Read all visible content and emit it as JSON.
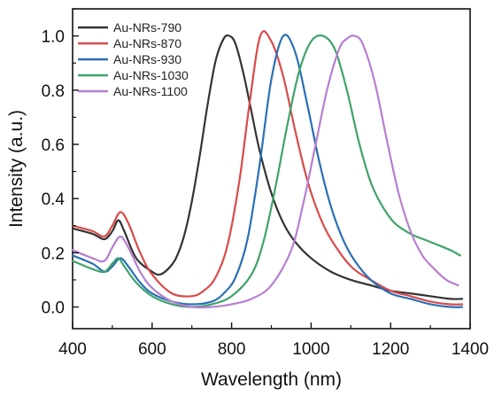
{
  "chart_data": {
    "type": "line",
    "xlabel": "Wavelength (nm)",
    "ylabel": "Intensity (a.u.)",
    "xlim": [
      400,
      1400
    ],
    "ylim": [
      -0.08,
      1.1
    ],
    "xticks": [
      400,
      600,
      800,
      1000,
      1200,
      1400
    ],
    "xtick_labels": [
      "400",
      "600",
      "800",
      "1000",
      "1200",
      "1400"
    ],
    "yticks": [
      0.0,
      0.2,
      0.4,
      0.6,
      0.8,
      1.0
    ],
    "ytick_labels": [
      "0.0",
      "0.2",
      "0.4",
      "0.6",
      "0.8",
      "1.0"
    ],
    "grid": false,
    "legend_position": "top-left",
    "series": [
      {
        "name": "Au-NRs-790",
        "color": "#333333",
        "x": [
          400,
          450,
          480,
          500,
          515,
          530,
          560,
          600,
          620,
          640,
          660,
          680,
          700,
          720,
          740,
          760,
          780,
          795,
          810,
          830,
          850,
          870,
          900,
          930,
          960,
          1000,
          1050,
          1100,
          1150,
          1200,
          1250,
          1300,
          1350,
          1380
        ],
        "y": [
          0.29,
          0.27,
          0.25,
          0.28,
          0.32,
          0.28,
          0.18,
          0.13,
          0.12,
          0.14,
          0.18,
          0.26,
          0.39,
          0.56,
          0.75,
          0.91,
          0.99,
          1.0,
          0.97,
          0.86,
          0.72,
          0.58,
          0.42,
          0.31,
          0.24,
          0.18,
          0.13,
          0.1,
          0.08,
          0.06,
          0.05,
          0.04,
          0.03,
          0.03
        ]
      },
      {
        "name": "Au-NRs-870",
        "color": "#d94a4a",
        "x": [
          400,
          450,
          480,
          500,
          520,
          540,
          570,
          600,
          650,
          700,
          730,
          760,
          790,
          820,
          845,
          872,
          900,
          930,
          960,
          990,
          1020,
          1050,
          1100,
          1150,
          1200,
          1250,
          1300,
          1350,
          1380
        ],
        "y": [
          0.3,
          0.28,
          0.26,
          0.3,
          0.35,
          0.31,
          0.2,
          0.12,
          0.05,
          0.04,
          0.06,
          0.11,
          0.23,
          0.47,
          0.75,
          1.0,
          0.98,
          0.85,
          0.65,
          0.47,
          0.34,
          0.25,
          0.15,
          0.1,
          0.06,
          0.04,
          0.02,
          0.01,
          0.01
        ]
      },
      {
        "name": "Au-NRs-930",
        "color": "#2a6fb5",
        "x": [
          400,
          450,
          480,
          500,
          520,
          540,
          570,
          600,
          650,
          700,
          750,
          780,
          810,
          840,
          870,
          900,
          930,
          960,
          990,
          1020,
          1050,
          1080,
          1110,
          1150,
          1200,
          1250,
          1300,
          1350,
          1380
        ],
        "y": [
          0.19,
          0.16,
          0.13,
          0.15,
          0.18,
          0.15,
          0.09,
          0.05,
          0.02,
          0.01,
          0.02,
          0.05,
          0.11,
          0.25,
          0.52,
          0.84,
          1.0,
          0.94,
          0.75,
          0.54,
          0.37,
          0.25,
          0.17,
          0.1,
          0.05,
          0.03,
          0.01,
          0.0,
          0.0
        ]
      },
      {
        "name": "Au-NRs-1030",
        "color": "#3fa36a",
        "x": [
          400,
          450,
          480,
          500,
          515,
          530,
          560,
          600,
          650,
          700,
          750,
          800,
          850,
          880,
          910,
          940,
          970,
          1000,
          1030,
          1060,
          1090,
          1120,
          1150,
          1180,
          1210,
          1250,
          1300,
          1350,
          1375
        ],
        "y": [
          0.17,
          0.14,
          0.13,
          0.16,
          0.18,
          0.15,
          0.09,
          0.04,
          0.01,
          0.0,
          0.01,
          0.04,
          0.12,
          0.24,
          0.44,
          0.67,
          0.87,
          0.98,
          1.0,
          0.95,
          0.8,
          0.61,
          0.46,
          0.37,
          0.31,
          0.27,
          0.24,
          0.21,
          0.19
        ]
      },
      {
        "name": "Au-NRs-1100",
        "color": "#b77fd0",
        "x": [
          400,
          450,
          480,
          500,
          520,
          540,
          570,
          600,
          650,
          700,
          750,
          800,
          850,
          900,
          950,
          980,
          1010,
          1040,
          1070,
          1090,
          1110,
          1130,
          1160,
          1190,
          1220,
          1250,
          1280,
          1310,
          1340,
          1370
        ],
        "y": [
          0.21,
          0.18,
          0.17,
          0.22,
          0.26,
          0.22,
          0.13,
          0.07,
          0.02,
          0.0,
          0.0,
          0.01,
          0.03,
          0.08,
          0.21,
          0.38,
          0.59,
          0.8,
          0.95,
          0.99,
          1.0,
          0.97,
          0.83,
          0.62,
          0.42,
          0.28,
          0.19,
          0.14,
          0.1,
          0.08
        ]
      }
    ]
  }
}
